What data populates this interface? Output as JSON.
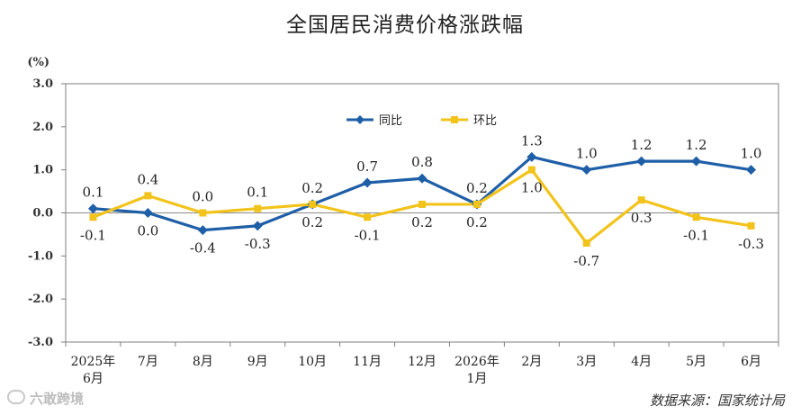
{
  "chart_data": {
    "type": "line",
    "title": "全国居民消费价格涨跌幅",
    "unit_label": "(%)",
    "ylim": [
      -3.0,
      3.0
    ],
    "yticks": [
      "3.0",
      "2.0",
      "1.0",
      "0.0",
      "-1.0",
      "-2.0",
      "-3.0"
    ],
    "categories": [
      [
        "2025年",
        "6月"
      ],
      [
        "7月"
      ],
      [
        "8月"
      ],
      [
        "9月"
      ],
      [
        "10月"
      ],
      [
        "11月"
      ],
      [
        "12月"
      ],
      [
        "2026年",
        "1月"
      ],
      [
        "2月"
      ],
      [
        "3月"
      ],
      [
        "4月"
      ],
      [
        "5月"
      ],
      [
        "6月"
      ]
    ],
    "legend_position": "top-center",
    "series": [
      {
        "name": "同比",
        "color": "#1f5fa8",
        "marker": "diamond",
        "values": [
          0.1,
          0.0,
          -0.4,
          -0.3,
          0.2,
          0.7,
          0.8,
          0.2,
          1.3,
          1.0,
          1.2,
          1.2,
          1.0
        ],
        "labels": [
          "0.1",
          "0.0",
          "-0.4",
          "-0.3",
          "0.2",
          "0.7",
          "0.8",
          "0.2",
          "1.3",
          "1.0",
          "1.2",
          "1.2",
          "1.0"
        ]
      },
      {
        "name": "环比",
        "color": "#f2c31a",
        "marker": "square",
        "values": [
          -0.1,
          0.4,
          0.0,
          0.1,
          0.2,
          -0.1,
          0.2,
          0.2,
          1.0,
          -0.7,
          0.3,
          -0.1,
          -0.3
        ],
        "labels": [
          "-0.1",
          "0.4",
          "0.0",
          "0.1",
          "0.2",
          "-0.1",
          "0.2",
          "0.2",
          "1.0",
          "-0.7",
          "0.3",
          "-0.1",
          "-0.3"
        ]
      }
    ]
  },
  "footer": {
    "source": "数据来源：国家统计局",
    "watermark": "六敢跨境"
  }
}
